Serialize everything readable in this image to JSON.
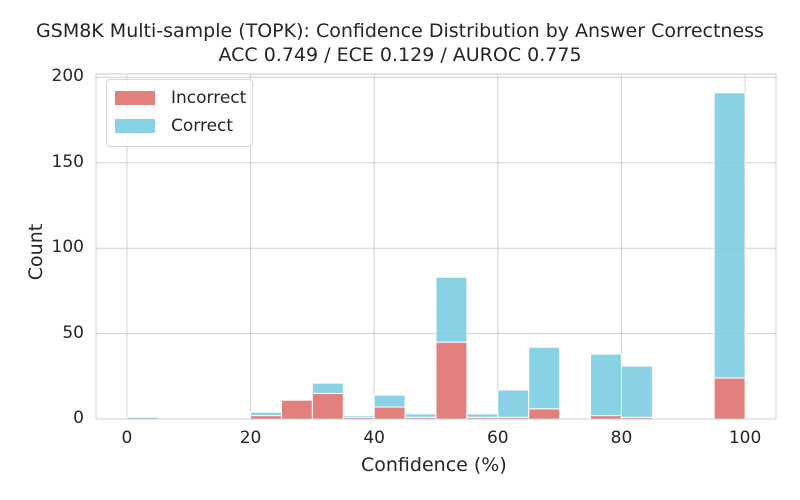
{
  "chart_data": {
    "type": "bar",
    "title": "GSM8K Multi-sample (TOPK): Confidence Distribution by Answer Correctness",
    "subtitle": "ACC 0.749 / ECE 0.129 / AUROC 0.775",
    "xlabel": "Confidence (%)",
    "ylabel": "Count",
    "xlim": [
      -5,
      105
    ],
    "ylim": [
      0,
      202
    ],
    "xticks": [
      "0",
      "20",
      "40",
      "60",
      "80",
      "100"
    ],
    "yticks": [
      "0",
      "50",
      "100",
      "150",
      "200"
    ],
    "grid": true,
    "legend_position": "top-left",
    "stacked": true,
    "bin_edges": [
      0,
      5,
      10,
      15,
      20,
      25,
      30,
      35,
      40,
      45,
      50,
      55,
      60,
      65,
      70,
      75,
      80,
      85,
      90,
      95,
      100
    ],
    "series": [
      {
        "name": "Incorrect",
        "color": "#dd6a66",
        "values": [
          0,
          0,
          0,
          0,
          2,
          11,
          15,
          1,
          7,
          1,
          45,
          1,
          1,
          6,
          0,
          2,
          1,
          0,
          0,
          24
        ]
      },
      {
        "name": "Correct",
        "color": "#74c9e1",
        "values": [
          1,
          0,
          0,
          0,
          2,
          0,
          6,
          1,
          7,
          2,
          38,
          2,
          16,
          36,
          0,
          36,
          30,
          0,
          0,
          167
        ]
      }
    ]
  }
}
